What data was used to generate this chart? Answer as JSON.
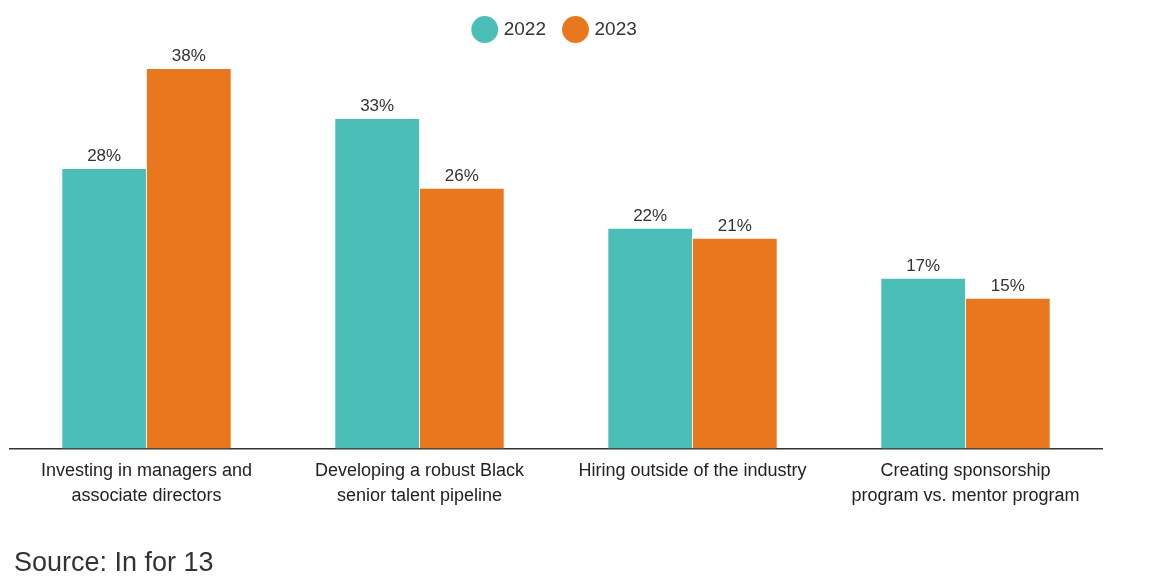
{
  "chart_data": {
    "type": "bar",
    "categories": [
      "Investing in managers and associate directors",
      "Developing a robust Black senior talent pipeline",
      "Hiring outside of the industry",
      "Creating sponsorship program vs. mentor program"
    ],
    "series": [
      {
        "name": "2022",
        "color": "#4bbfb7",
        "values": [
          28,
          33,
          22,
          17
        ],
        "value_labels": [
          "28%",
          "33%",
          "22%",
          "17%"
        ]
      },
      {
        "name": "2023",
        "color": "#e8771e",
        "values": [
          38,
          26,
          21,
          15
        ],
        "value_labels": [
          "38%",
          "26%",
          "21%",
          "15%"
        ]
      }
    ],
    "legend": "top",
    "grid": false,
    "annotations": [
      "Source: In for 13"
    ]
  }
}
